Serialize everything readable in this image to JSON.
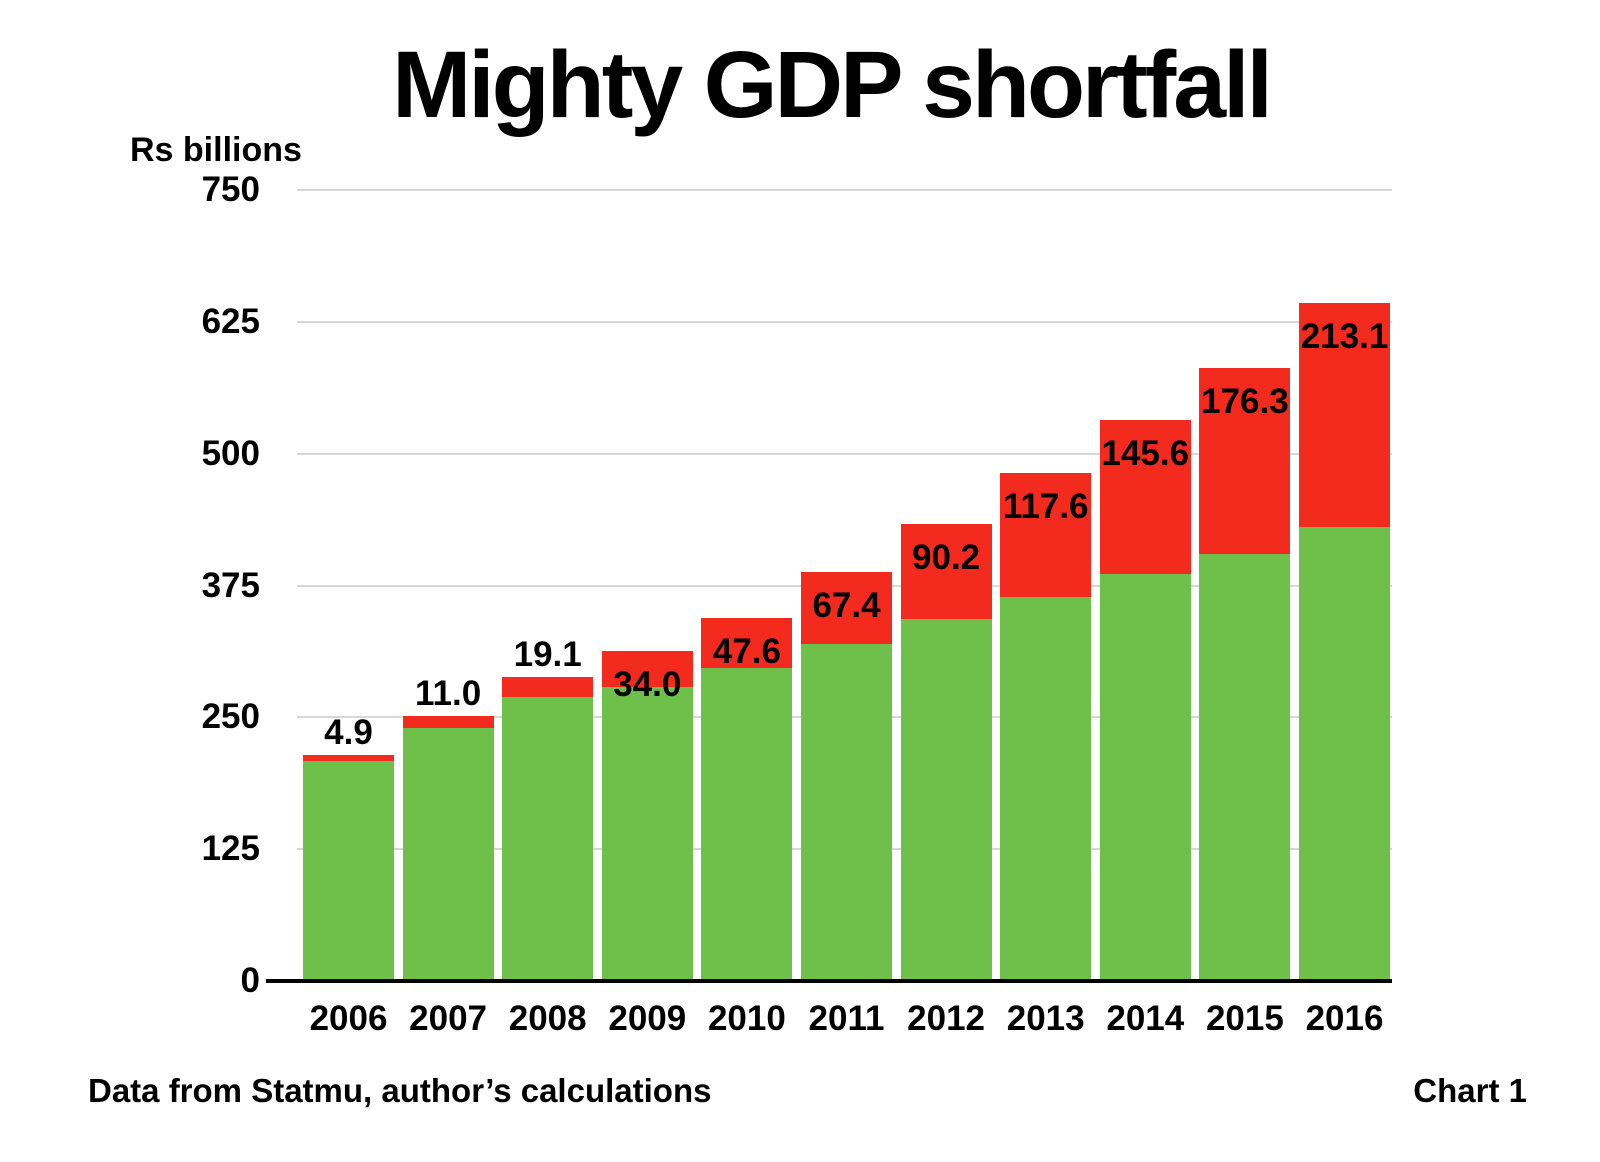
{
  "title": "Mighty GDP shortfall",
  "y_axis_unit": "Rs billions",
  "footer": {
    "left": "Data from Statmu, author’s calculations",
    "right": "Chart 1"
  },
  "colors": {
    "green": "#6FC04A",
    "red": "#F32B1E",
    "gridline": "#D8D8D8",
    "axis": "#000000",
    "label_text": "#000000"
  },
  "chart_data": {
    "type": "bar",
    "stacked": true,
    "title": "Mighty GDP shortfall",
    "ylabel": "Rs billions",
    "xlabel": "",
    "categories": [
      "2006",
      "2007",
      "2008",
      "2009",
      "2010",
      "2011",
      "2012",
      "2013",
      "2014",
      "2015",
      "2016"
    ],
    "series": [
      {
        "name": "green",
        "color_key": "green",
        "values_estimated_from_gridlines": true,
        "values": [
          209,
          240,
          269,
          279,
          297,
          320,
          343,
          364,
          386,
          405,
          430
        ]
      },
      {
        "name": "red",
        "color_key": "red",
        "values": [
          4.9,
          11.0,
          19.1,
          34.0,
          47.6,
          67.4,
          90.2,
          117.6,
          145.6,
          176.3,
          213.1
        ],
        "data_labels": [
          "4.9",
          "11.0",
          "19.1",
          "34.0",
          "47.6",
          "67.4",
          "90.2",
          "117.6",
          "145.6",
          "176.3",
          "213.1"
        ]
      }
    ],
    "yticks": [
      0,
      125,
      250,
      375,
      500,
      625,
      750
    ],
    "ylim": [
      0,
      750
    ],
    "grid": true,
    "legend_position": "none"
  }
}
